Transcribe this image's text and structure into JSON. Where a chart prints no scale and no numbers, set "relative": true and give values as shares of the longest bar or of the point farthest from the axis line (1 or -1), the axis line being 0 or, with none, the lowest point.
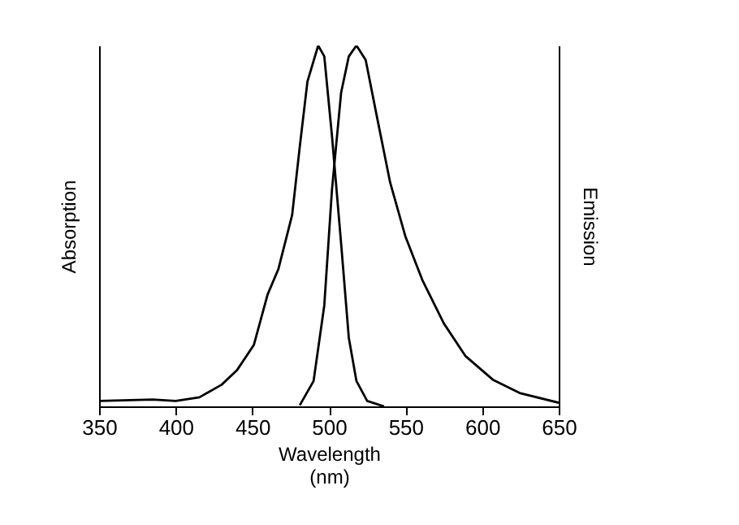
{
  "chart_data": {
    "type": "line",
    "relative": true,
    "xlabel": "Wavelength (nm)",
    "ylabel": "Absorption",
    "y2label": "Emission",
    "xlim": [
      350,
      650
    ],
    "xticks": [
      350,
      400,
      450,
      500,
      550,
      600,
      650
    ],
    "grid": false,
    "marker": "none",
    "line_style": "solid",
    "series": [
      {
        "color": "#000000",
        "x": [
          350,
          385,
          400,
          415.5,
          430,
          440,
          451,
          460,
          467,
          476,
          481,
          486,
          493,
          497,
          502,
          508,
          513,
          518,
          525,
          536
        ],
        "values": [
          0.015,
          0.019,
          0.015,
          0.025,
          0.06,
          0.1,
          0.17,
          0.31,
          0.38,
          0.53,
          0.72,
          0.9,
          1,
          0.97,
          0.75,
          0.45,
          0.19,
          0.07,
          0.015,
          0
        ]
      },
      {
        "color": "#000000",
        "axis": "y2",
        "x": [
          481,
          490,
          497,
          502,
          508,
          513,
          518,
          524,
          531,
          540,
          550,
          561,
          575,
          589,
          607,
          624.5,
          650
        ],
        "values": [
          0.003,
          0.07,
          0.28,
          0.6,
          0.87,
          0.97,
          1,
          0.96,
          0.81,
          0.62,
          0.47,
          0.35,
          0.23,
          0.14,
          0.074,
          0.037,
          0.01
        ]
      }
    ]
  }
}
